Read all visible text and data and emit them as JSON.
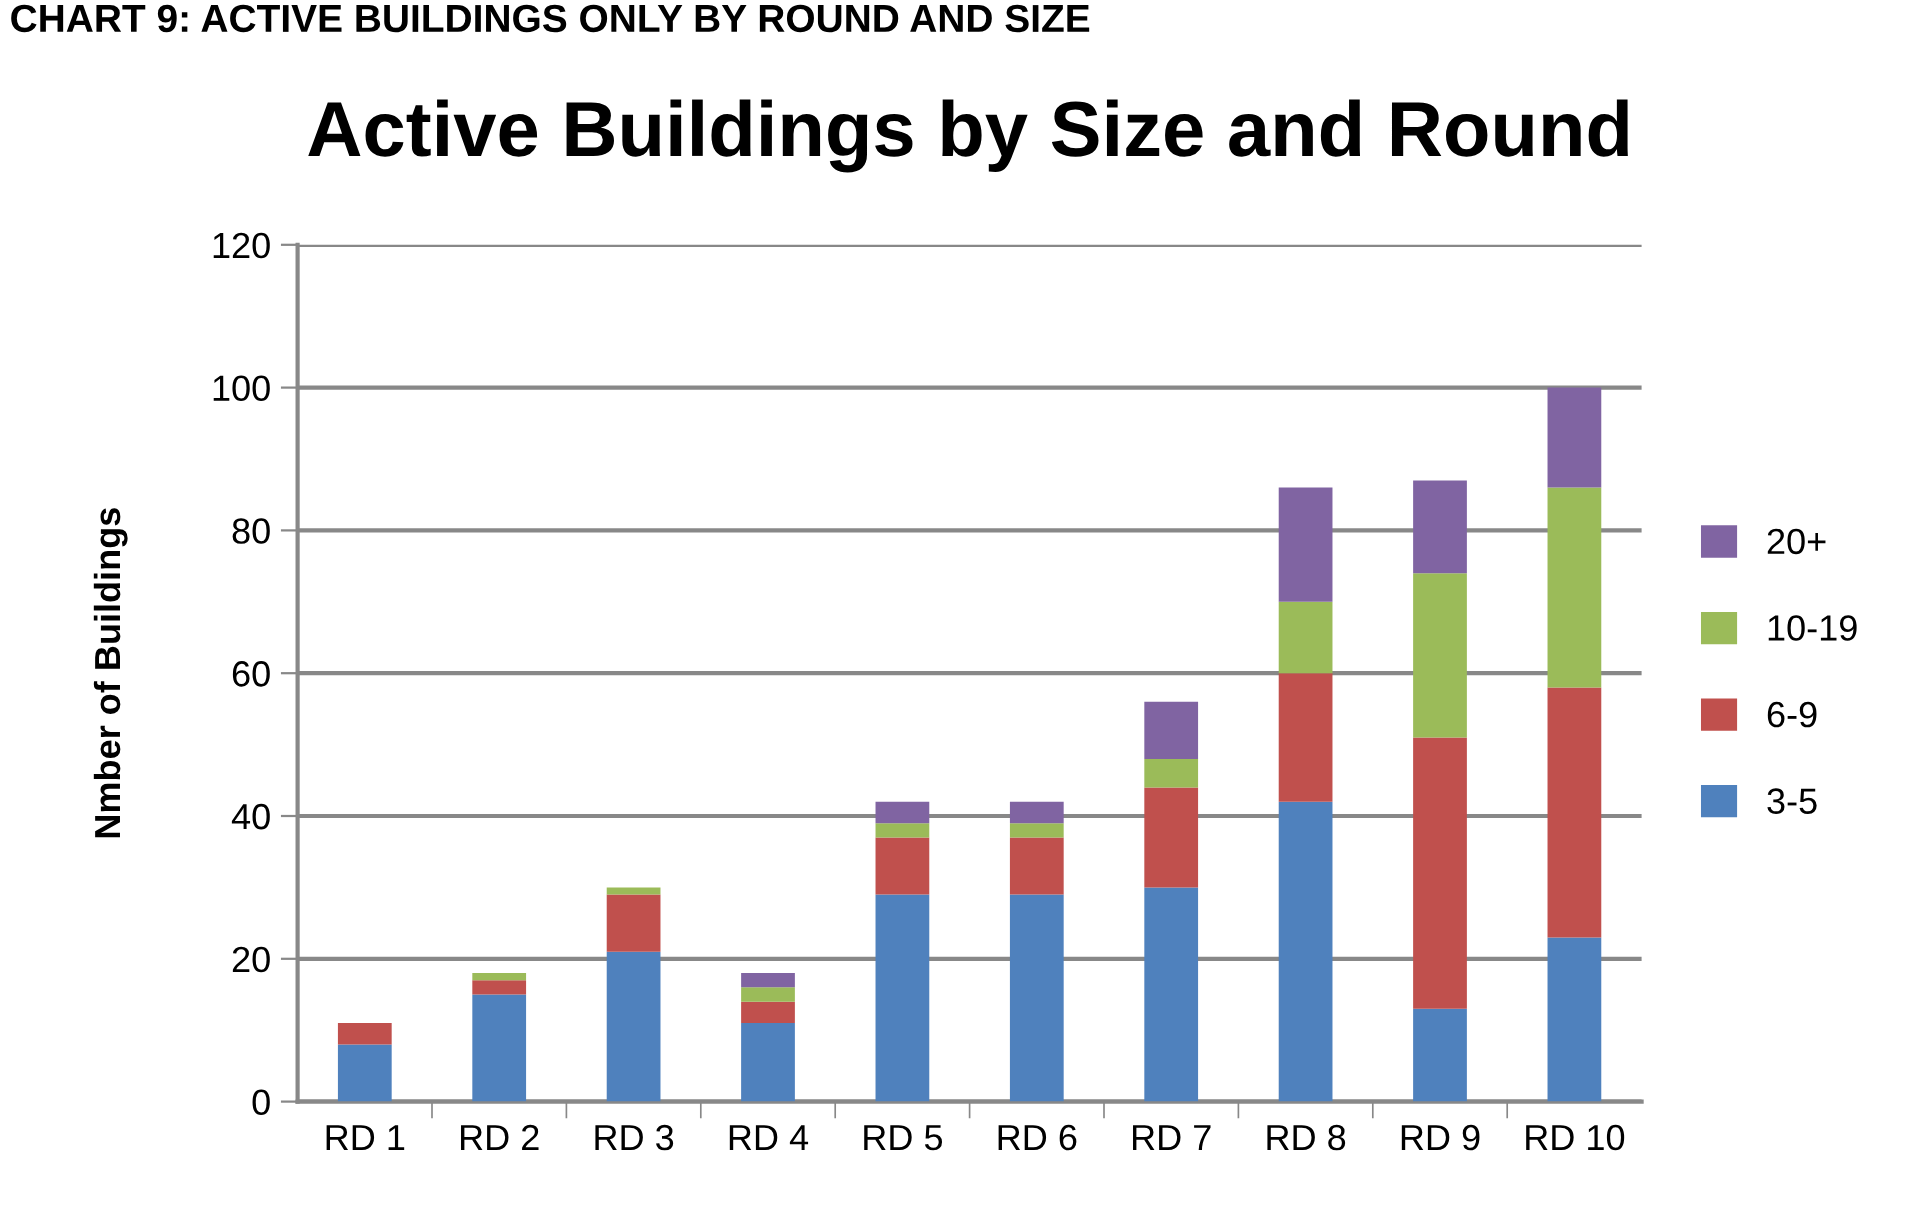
{
  "chart_data": {
    "type": "bar",
    "stacked": true,
    "title": "Active Buildings by Size and Round",
    "ylabel": "Nmber of Buildings",
    "annotations": [
      "CHART 9: ACTIVE BUILDINGS ONLY BY ROUND AND SIZE"
    ],
    "categories": [
      "RD 1",
      "RD 2",
      "RD 3",
      "RD 4",
      "RD 5",
      "RD 6",
      "RD 7",
      "RD 8",
      "RD 9",
      "RD 10"
    ],
    "series": [
      {
        "name": "3-5",
        "color": "#4f81bd",
        "values": [
          8,
          15,
          21,
          11,
          29,
          29,
          30,
          42,
          13,
          23
        ]
      },
      {
        "name": "6-9",
        "color": "#c0504d",
        "values": [
          3,
          2,
          8,
          3,
          8,
          8,
          14,
          18,
          38,
          35
        ]
      },
      {
        "name": "10-19",
        "color": "#9bbb59",
        "values": [
          0,
          1,
          1,
          2,
          2,
          2,
          4,
          10,
          23,
          28
        ]
      },
      {
        "name": "20+",
        "color": "#8064a2",
        "values": [
          0,
          0,
          0,
          2,
          3,
          3,
          8,
          16,
          13,
          14
        ]
      }
    ],
    "ylim": [
      0,
      120
    ],
    "yticks": [
      0,
      20,
      40,
      60,
      80,
      100,
      120
    ],
    "grid": "y",
    "legend": "right"
  }
}
